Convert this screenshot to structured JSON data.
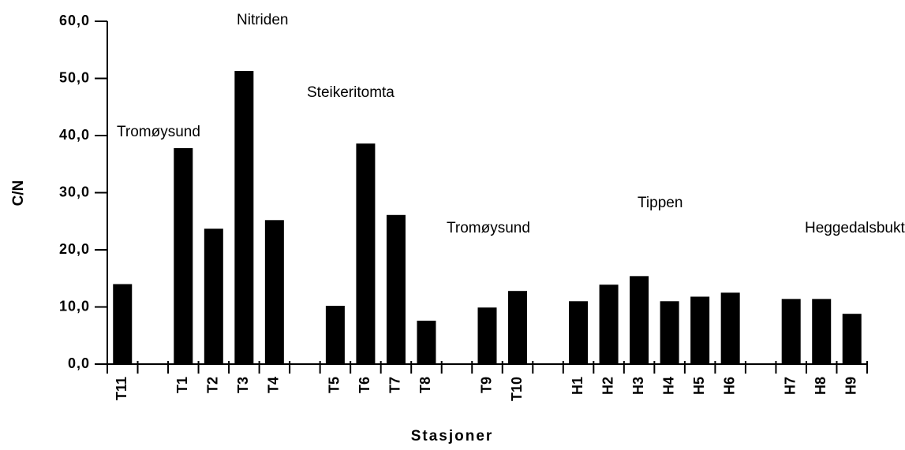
{
  "chart_data": {
    "type": "bar",
    "x_label": "Stasjoner",
    "y_label": "C/N",
    "categories": [
      "T11",
      null,
      "T1",
      "T2",
      "T3",
      "T4",
      null,
      "T5",
      "T6",
      "T7",
      "T8",
      null,
      "T9",
      "T10",
      null,
      "H1",
      "H2",
      "H3",
      "H4",
      "H5",
      "H6",
      null,
      "H7",
      "H8",
      "H9"
    ],
    "values": [
      14,
      null,
      37.8,
      23.7,
      51.3,
      25.2,
      null,
      10.2,
      38.6,
      26.1,
      7.6,
      null,
      9.9,
      12.8,
      null,
      11,
      13.9,
      15.4,
      11,
      11.8,
      12.5,
      null,
      11.4,
      11.4,
      8.8
    ],
    "color": "#000000",
    "ylim": [
      0,
      60
    ],
    "yticks": [
      {
        "value": 0,
        "label": "0,0"
      },
      {
        "value": 10,
        "label": "10,0"
      },
      {
        "value": 20,
        "label": "20,0"
      },
      {
        "value": 30,
        "label": "30,0"
      },
      {
        "value": 40,
        "label": "40,0"
      },
      {
        "value": 50,
        "label": "50,0"
      },
      {
        "value": 60,
        "label": "60,0"
      }
    ],
    "annotations": [
      "Nitriden",
      "Tromøysund",
      "Steikeritomta",
      "Tromøysund",
      "Tippen",
      "Heggedalsbukta"
    ],
    "grid": false
  }
}
